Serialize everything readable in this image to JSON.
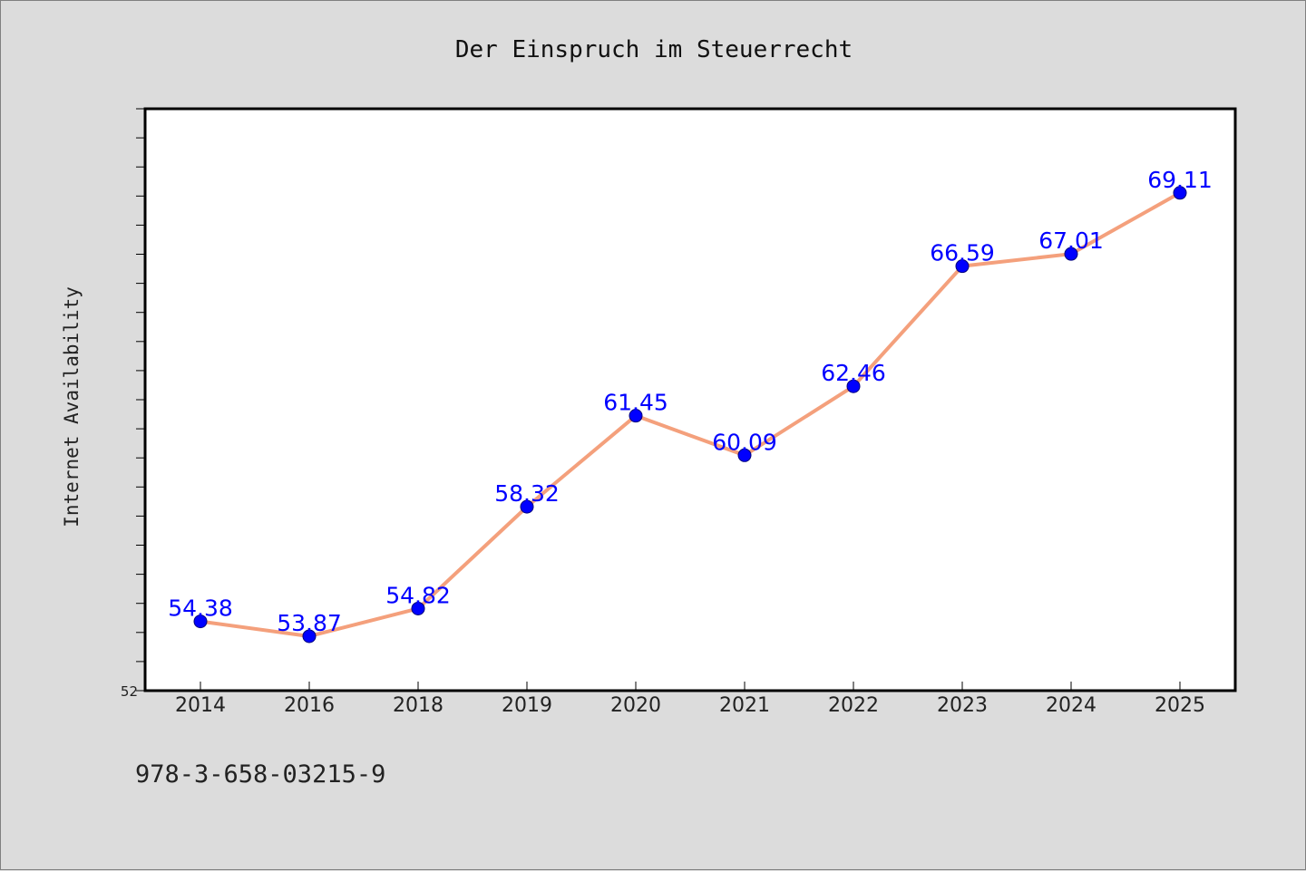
{
  "chart_data": {
    "type": "line",
    "title": "Der Einspruch im Steuerrecht",
    "xlabel": "",
    "ylabel": "Internet Availability",
    "categories": [
      "2014",
      "2016",
      "2018",
      "2019",
      "2020",
      "2021",
      "2022",
      "2023",
      "2024",
      "2025"
    ],
    "series": [
      {
        "values": [
          54.38,
          53.87,
          54.82,
          58.32,
          61.45,
          60.09,
          62.46,
          66.59,
          67.01,
          69.11
        ],
        "labels": [
          "54.38",
          "53.87",
          "54.82",
          "58.32",
          "61.45",
          "60.09",
          "62.46",
          "66.59",
          "67.01",
          "69.11"
        ],
        "line_color": "#f4a07c",
        "marker_color": "#0000ff"
      }
    ],
    "ylim": [
      52,
      72
    ],
    "ytick_labels": [
      "52"
    ],
    "grid": false,
    "legend": "none",
    "footer": "978-3-658-03215-9"
  }
}
